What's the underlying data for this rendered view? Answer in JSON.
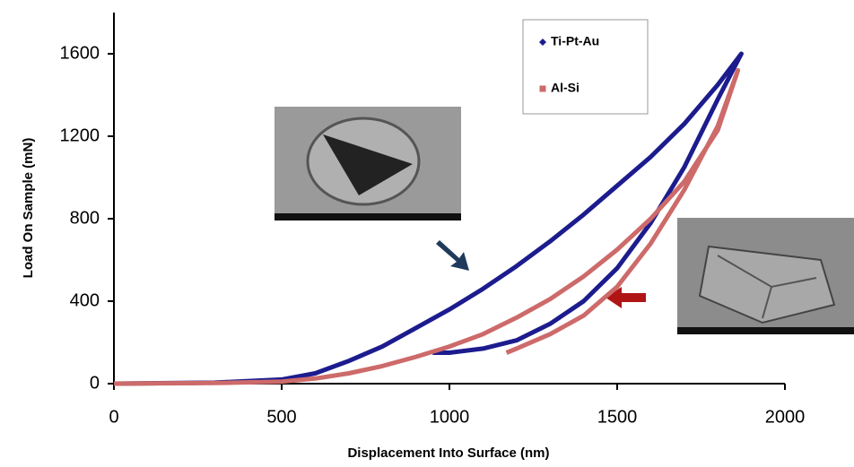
{
  "chart_data": {
    "type": "line",
    "x_label": "Displacement Into Surface (nm)",
    "y_label": "Load On Sample (mN)",
    "xlim": [
      0,
      2000
    ],
    "xticks": [
      0,
      500,
      1000,
      1500,
      2000
    ],
    "ylim": [
      0,
      1800
    ],
    "yticks": [
      0,
      400,
      800,
      1200,
      1600
    ],
    "series": [
      {
        "name": "Ti-Pt-Au",
        "color": "#1c1c8e",
        "marker": "diamond",
        "x": [
          0,
          300,
          500,
          600,
          700,
          800,
          900,
          1000,
          1100,
          1200,
          1300,
          1400,
          1500,
          1600,
          1700,
          1800,
          1870,
          1800,
          1700,
          1600,
          1500,
          1400,
          1300,
          1200,
          1100,
          1000,
          950
        ],
        "values": [
          0,
          5,
          20,
          50,
          110,
          180,
          270,
          360,
          460,
          570,
          690,
          820,
          960,
          1100,
          1260,
          1450,
          1600,
          1380,
          1050,
          780,
          560,
          400,
          290,
          210,
          170,
          150,
          150
        ]
      },
      {
        "name": "Al-Si",
        "color": "#cd6a6a",
        "marker": "square",
        "x": [
          0,
          300,
          500,
          600,
          700,
          800,
          900,
          1000,
          1100,
          1200,
          1300,
          1400,
          1500,
          1600,
          1700,
          1800,
          1860,
          1800,
          1700,
          1600,
          1500,
          1400,
          1300,
          1200,
          1170
        ],
        "values": [
          0,
          3,
          10,
          25,
          50,
          85,
          130,
          180,
          240,
          320,
          410,
          520,
          650,
          800,
          980,
          1230,
          1520,
          1250,
          940,
          680,
          470,
          330,
          240,
          170,
          150
        ]
      }
    ]
  }
}
